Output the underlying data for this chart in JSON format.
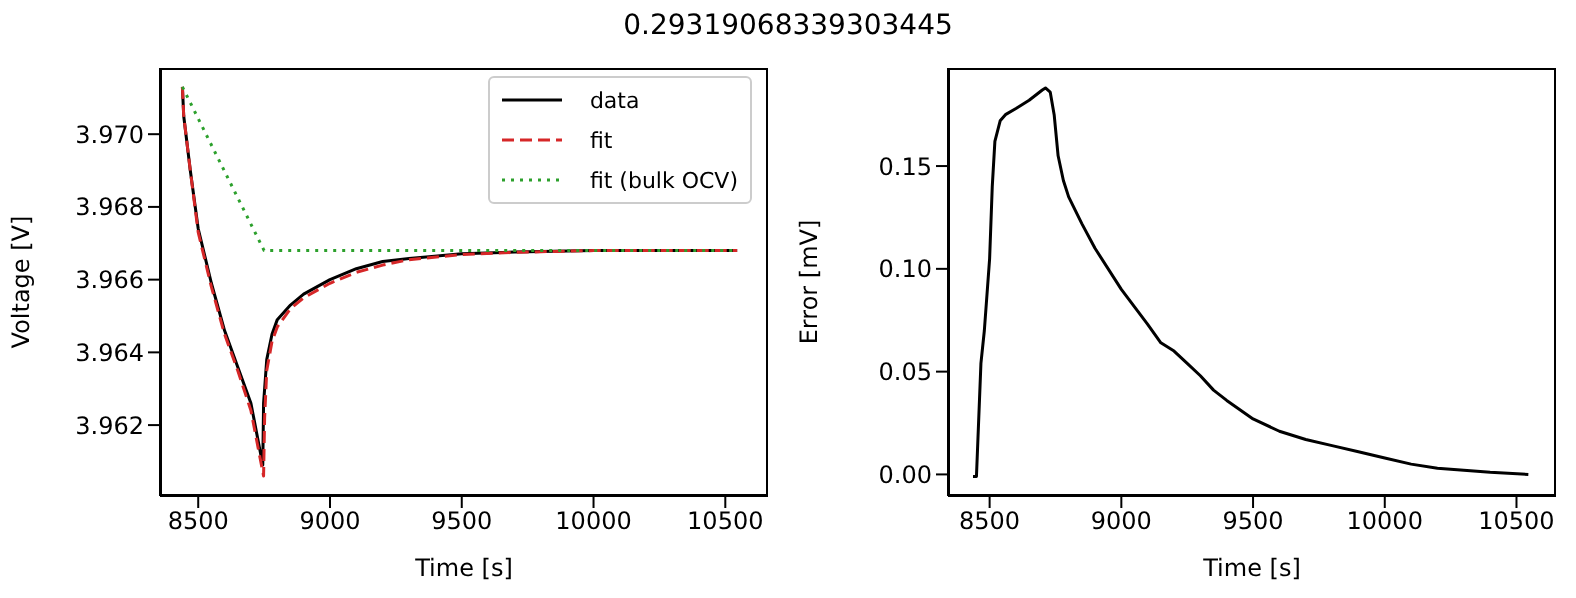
{
  "chart_data": [
    {
      "type": "line",
      "title": "0.29319068339303445",
      "xlabel": "Time [s]",
      "ylabel": "Voltage [V]",
      "xlim": [
        8355,
        10662
      ],
      "ylim": [
        3.96005,
        3.97182
      ],
      "xticks": [
        8500,
        9000,
        9500,
        10000,
        10500
      ],
      "yticks": [
        3.962,
        3.964,
        3.966,
        3.968,
        {
          "value": 3.97,
          "label": "3.970"
        }
      ],
      "legend": "top right",
      "grid": false,
      "marker": "none",
      "series": [
        {
          "name": "data",
          "color": "#000000",
          "line_style": "solid",
          "x": [
            8440,
            8445,
            8470,
            8500,
            8550,
            8600,
            8650,
            8700,
            8745,
            8748,
            8760,
            8780,
            8800,
            8850,
            8900,
            9000,
            9100,
            9200,
            9300,
            9500,
            9700,
            10000,
            10300,
            10545
          ],
          "values": [
            3.9713,
            3.9705,
            3.969,
            3.9674,
            3.9659,
            3.9646,
            3.9636,
            3.9626,
            3.9609,
            3.9626,
            3.9638,
            3.9645,
            3.9649,
            3.9653,
            3.9656,
            3.966,
            3.9663,
            3.9665,
            3.96658,
            3.96671,
            3.96676,
            3.9668,
            3.9668,
            3.9668
          ]
        },
        {
          "name": "fit",
          "color": "#d62728",
          "line_style": "dashed",
          "x": [
            8440,
            8445,
            8470,
            8500,
            8550,
            8600,
            8650,
            8700,
            8748,
            8752,
            8760,
            8780,
            8800,
            8850,
            8900,
            9000,
            9100,
            9200,
            9300,
            9500,
            9700,
            10000,
            10300,
            10545
          ],
          "values": [
            3.9713,
            3.9705,
            3.969,
            3.9673,
            3.9658,
            3.9645,
            3.9635,
            3.9624,
            3.9606,
            3.9622,
            3.9635,
            3.9643,
            3.9647,
            3.9652,
            3.9655,
            3.9659,
            3.9662,
            3.9664,
            3.96655,
            3.96669,
            3.96675,
            3.9668,
            3.9668,
            3.9668
          ]
        },
        {
          "name": "fit (bulk OCV)",
          "color": "#2ca02c",
          "line_style": "dotted",
          "x": [
            8440,
            8750,
            10545
          ],
          "values": [
            3.9713,
            3.9668,
            3.9668
          ]
        }
      ]
    },
    {
      "type": "line",
      "xlabel": "Time [s]",
      "ylabel": "Error [mV]",
      "xlim": [
        8342,
        10650
      ],
      "ylim": [
        -0.0105,
        0.1977
      ],
      "xticks": [
        8500,
        9000,
        9500,
        10000,
        10500
      ],
      "yticks": [
        {
          "value": 0,
          "label": "0.00"
        },
        {
          "value": 0.05,
          "label": "0.05"
        },
        {
          "value": 0.1,
          "label": "0.10"
        },
        {
          "value": 0.15,
          "label": "0.15"
        }
      ],
      "grid": false,
      "marker": "none",
      "series": [
        {
          "color": "#000000",
          "line_style": "solid",
          "x": [
            8437,
            8450,
            8467,
            8480,
            8500,
            8510,
            8520,
            8540,
            8560,
            8600,
            8650,
            8700,
            8712,
            8730,
            8745,
            8760,
            8780,
            8800,
            8850,
            8900,
            9000,
            9100,
            9150,
            9200,
            9250,
            9300,
            9350,
            9400,
            9500,
            9600,
            9700,
            9800,
            9900,
            10000,
            10100,
            10200,
            10300,
            10400,
            10545
          ],
          "values": [
            -0.001,
            -0.001,
            0.054,
            0.07,
            0.105,
            0.14,
            0.162,
            0.172,
            0.175,
            0.178,
            0.182,
            0.187,
            0.188,
            0.186,
            0.175,
            0.155,
            0.143,
            0.135,
            0.122,
            0.11,
            0.09,
            0.073,
            0.064,
            0.06,
            0.054,
            0.048,
            0.041,
            0.036,
            0.027,
            0.021,
            0.017,
            0.014,
            0.011,
            0.008,
            0.005,
            0.003,
            0.002,
            0.001,
            0
          ]
        }
      ]
    }
  ]
}
